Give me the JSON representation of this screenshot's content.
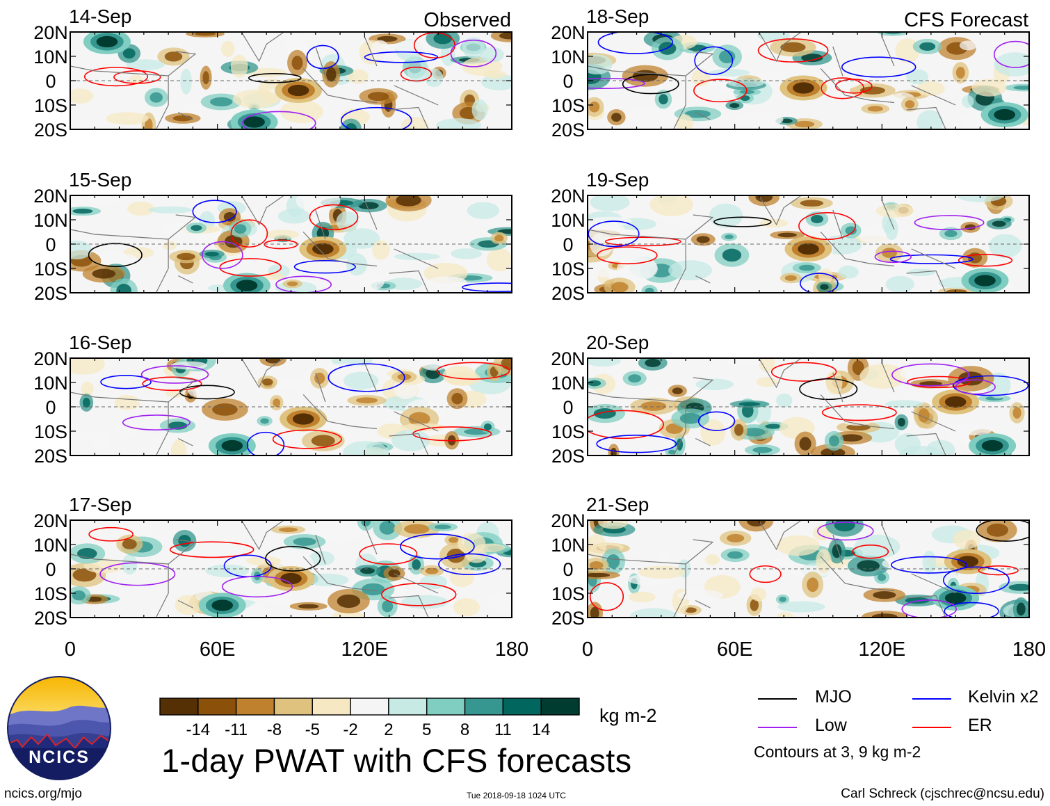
{
  "title": "1-day PWAT with CFS forecasts",
  "panel_headers": {
    "observed": "Observed",
    "forecast": "CFS Forecast"
  },
  "legend": {
    "mjo": {
      "label": "MJO",
      "color": "#000000"
    },
    "kelvin": {
      "label": "Kelvin x2",
      "color": "#0000ff"
    },
    "low": {
      "label": "Low",
      "color": "#a020f0"
    },
    "er": {
      "label": "ER",
      "color": "#ff0000"
    },
    "note": "Contours at 3, 9 kg m-2"
  },
  "colorbar": {
    "units": "kg m-2",
    "colors": [
      "#563005",
      "#8b510a",
      "#bf812d",
      "#dfc27d",
      "#f6e8c3",
      "#f5f5f5",
      "#c7eae5",
      "#80cdc1",
      "#35978f",
      "#01665e",
      "#003c30"
    ],
    "tick_labels": [
      "-14",
      "-11",
      "-8",
      "-5",
      "-2",
      "2",
      "5",
      "8",
      "11",
      "14"
    ]
  },
  "footer": {
    "site": "ncics.org/mjo",
    "timestamp": "Tue 2018-09-18 1024 UTC",
    "author": "Carl Schreck (cjschrec@ncsu.edu)"
  },
  "logo": {
    "text": "NCICS",
    "icon": "ncics-logo"
  },
  "chart_data": {
    "type": "heatmap",
    "variable": "PWAT anomaly",
    "xlabels": [
      "0",
      "60E",
      "120E",
      "180"
    ],
    "ylabels": [
      "20N",
      "10N",
      "0",
      "10S",
      "20S"
    ],
    "xlim": [
      0,
      180
    ],
    "ylim": [
      -20,
      20
    ],
    "panels": [
      {
        "date": "14-Sep",
        "kind": "observed",
        "column": 0,
        "row": 0,
        "seed": 11
      },
      {
        "date": "15-Sep",
        "kind": "observed",
        "column": 0,
        "row": 1,
        "seed": 23
      },
      {
        "date": "16-Sep",
        "kind": "observed",
        "column": 0,
        "row": 2,
        "seed": 37
      },
      {
        "date": "17-Sep",
        "kind": "observed",
        "column": 0,
        "row": 3,
        "seed": 41
      },
      {
        "date": "18-Sep",
        "kind": "forecast",
        "column": 1,
        "row": 0,
        "seed": 53
      },
      {
        "date": "19-Sep",
        "kind": "forecast",
        "column": 1,
        "row": 1,
        "seed": 67
      },
      {
        "date": "20-Sep",
        "kind": "forecast",
        "column": 1,
        "row": 2,
        "seed": 71
      },
      {
        "date": "21-Sep",
        "kind": "forecast",
        "column": 1,
        "row": 3,
        "seed": 89
      }
    ],
    "anomaly_blobs": [
      {
        "date": "14-Sep",
        "lon": 93,
        "lat": -4,
        "value": -14
      },
      {
        "date": "14-Sep",
        "lon": 75,
        "lat": -17,
        "value": 14
      },
      {
        "date": "14-Sep",
        "lon": 15,
        "lat": 16,
        "value": 14
      },
      {
        "date": "15-Sep",
        "lon": 103,
        "lat": -2,
        "value": -14
      },
      {
        "date": "15-Sep",
        "lon": 72,
        "lat": -17,
        "value": 14
      },
      {
        "date": "16-Sep",
        "lon": 95,
        "lat": -5,
        "value": -14
      },
      {
        "date": "16-Sep",
        "lon": 66,
        "lat": -16,
        "value": 14
      },
      {
        "date": "17-Sep",
        "lon": 90,
        "lat": -4,
        "value": -14
      },
      {
        "date": "17-Sep",
        "lon": 62,
        "lat": -15,
        "value": 14
      },
      {
        "date": "18-Sep",
        "lon": 88,
        "lat": -3,
        "value": -14
      },
      {
        "date": "18-Sep",
        "lon": 170,
        "lat": -14,
        "value": 14
      },
      {
        "date": "19-Sep",
        "lon": 90,
        "lat": -2,
        "value": -14
      },
      {
        "date": "19-Sep",
        "lon": 162,
        "lat": -15,
        "value": 14
      },
      {
        "date": "20-Sep",
        "lon": 150,
        "lat": 2,
        "value": -14
      },
      {
        "date": "20-Sep",
        "lon": 165,
        "lat": -16,
        "value": 14
      },
      {
        "date": "21-Sep",
        "lon": 155,
        "lat": 3,
        "value": -14
      },
      {
        "date": "21-Sep",
        "lon": 150,
        "lat": -12,
        "value": 14
      }
    ]
  }
}
